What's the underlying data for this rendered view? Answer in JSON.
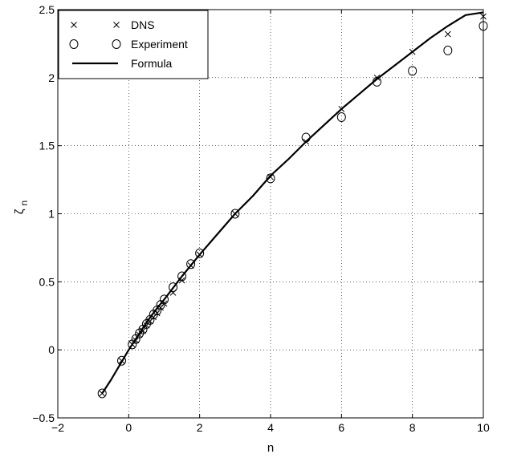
{
  "chart_data": {
    "type": "scatter",
    "xlabel": "n",
    "ylabel": "ζ",
    "ylabel_sub": "n",
    "xlim": [
      -2,
      10
    ],
    "ylim": [
      -0.5,
      2.5
    ],
    "grid": true,
    "grid_style": "dotted",
    "legend_position": "top-left",
    "xticks": [
      -2,
      0,
      2,
      4,
      6,
      8,
      10
    ],
    "xtick_labels": [
      "−2",
      "0",
      "2",
      "4",
      "6",
      "8",
      "10"
    ],
    "yticks": [
      -0.5,
      0,
      0.5,
      1,
      1.5,
      2,
      2.5
    ],
    "ytick_labels": [
      "−0.5",
      "0",
      "0.5",
      "1",
      "1.5",
      "2",
      "2.5"
    ],
    "series": [
      {
        "name": "DNS",
        "marker": "x",
        "x": [
          -0.75,
          -0.2,
          0.1,
          0.2,
          0.3,
          0.4,
          0.5,
          0.6,
          0.7,
          0.8,
          0.9,
          1.0,
          1.25,
          1.5,
          1.75,
          2,
          3,
          4,
          5,
          6,
          7,
          8,
          9,
          10
        ],
        "y": [
          -0.32,
          -0.08,
          0.04,
          0.07,
          0.11,
          0.14,
          0.18,
          0.21,
          0.24,
          0.27,
          0.31,
          0.34,
          0.42,
          0.51,
          0.62,
          0.7,
          1.0,
          1.27,
          1.53,
          1.77,
          2.0,
          2.19,
          2.32,
          2.45
        ]
      },
      {
        "name": "Experiment",
        "marker": "o",
        "x": [
          -0.75,
          -0.2,
          0.1,
          0.2,
          0.3,
          0.4,
          0.5,
          0.6,
          0.7,
          0.8,
          0.9,
          1.0,
          1.25,
          1.5,
          1.75,
          2,
          3,
          4,
          5,
          6,
          7,
          8,
          9,
          10
        ],
        "y": [
          -0.32,
          -0.08,
          0.04,
          0.08,
          0.12,
          0.15,
          0.19,
          0.22,
          0.26,
          0.29,
          0.33,
          0.37,
          0.46,
          0.54,
          0.63,
          0.71,
          1.0,
          1.26,
          1.56,
          1.71,
          1.97,
          2.05,
          2.2,
          2.38
        ]
      },
      {
        "name": "Formula",
        "marker": "line",
        "x": [
          -0.75,
          -0.5,
          -0.25,
          0,
          0.25,
          0.5,
          0.75,
          1,
          1.5,
          2,
          2.5,
          3,
          3.5,
          4,
          4.5,
          5,
          5.5,
          6,
          6.5,
          7,
          7.5,
          8,
          8.5,
          9,
          9.5,
          10
        ],
        "y": [
          -0.32,
          -0.22,
          -0.11,
          0.0,
          0.1,
          0.2,
          0.29,
          0.37,
          0.54,
          0.7,
          0.85,
          1.0,
          1.13,
          1.28,
          1.4,
          1.53,
          1.65,
          1.77,
          1.88,
          1.99,
          2.09,
          2.19,
          2.29,
          2.38,
          2.46,
          2.48
        ]
      }
    ]
  }
}
